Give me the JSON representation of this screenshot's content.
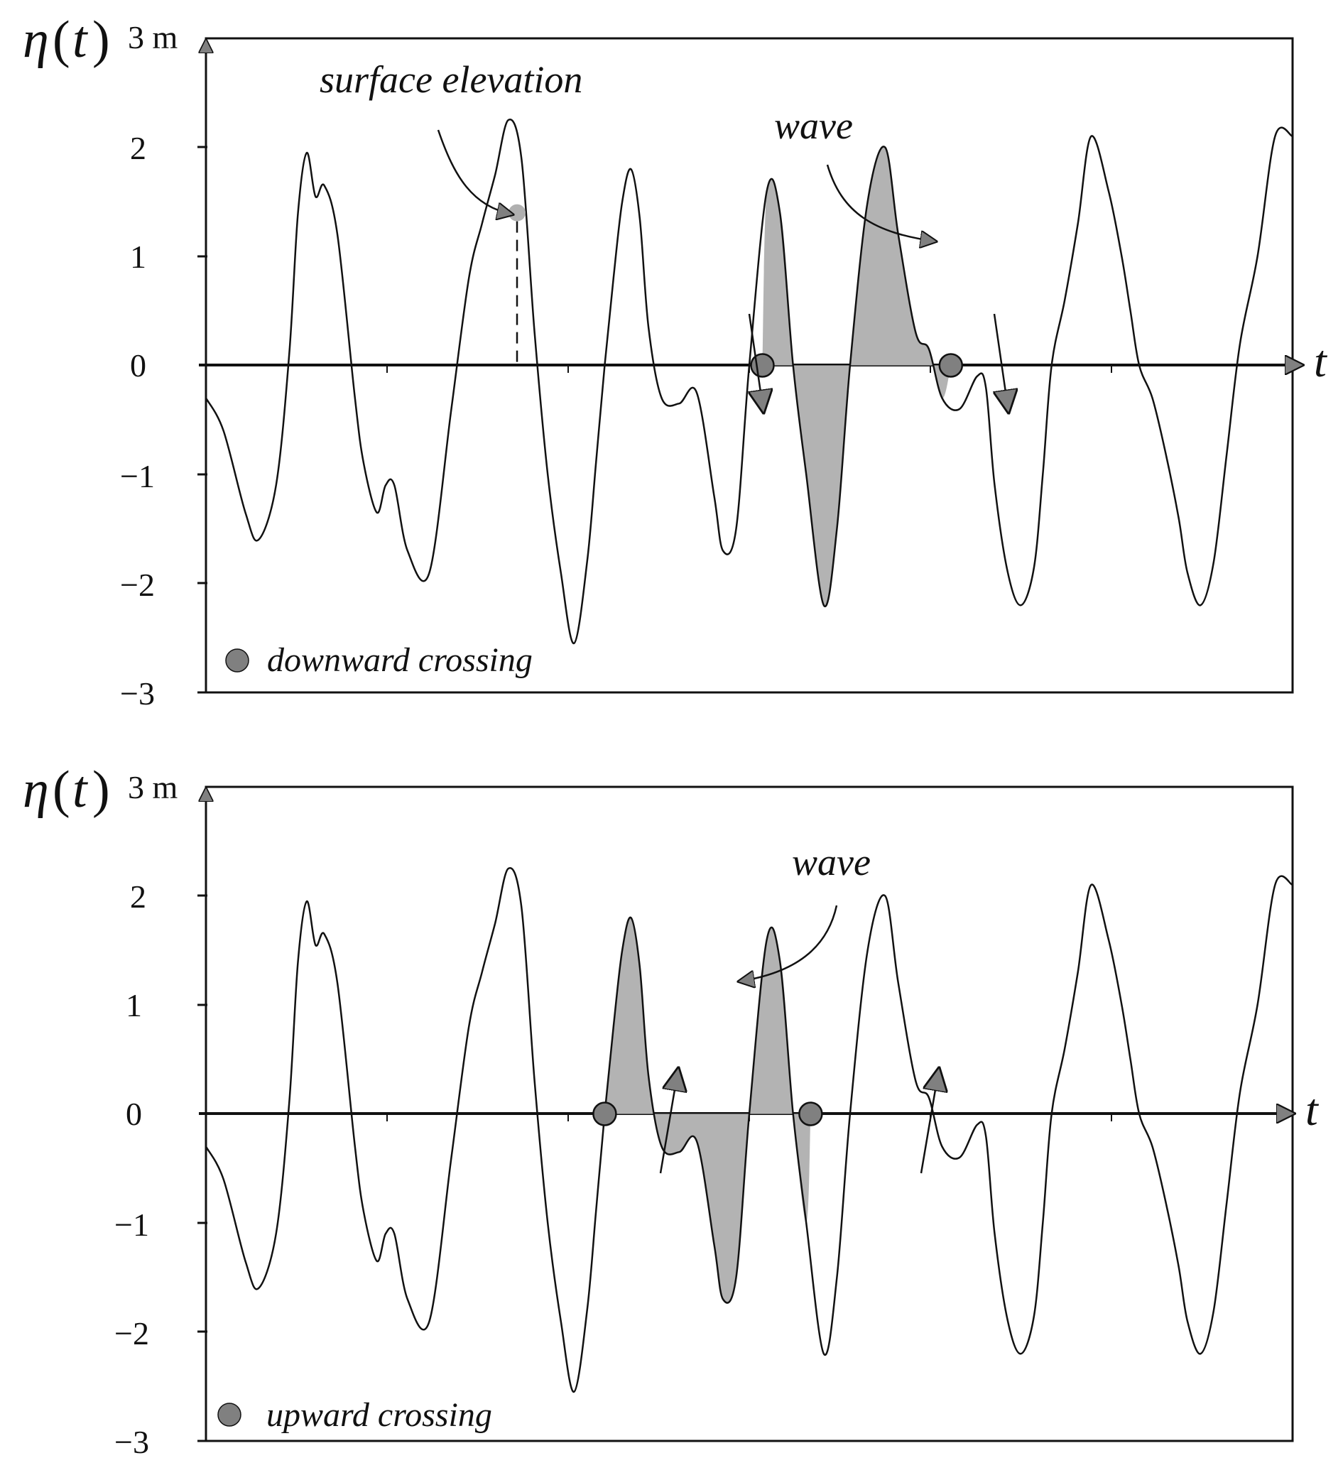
{
  "chart_data": [
    {
      "type": "line",
      "ylabel_symbol": "η",
      "ylabel_arg": "t",
      "yunit": "3 m",
      "xlabel": "t",
      "ylim": [
        -3,
        3
      ],
      "yticks": [
        "−3",
        "−2",
        "−1",
        "0",
        "1",
        "2"
      ],
      "grid": false,
      "series": [
        {
          "x": [
            0,
            0.2,
            0.45,
            0.6,
            0.8,
            0.95,
            1.05,
            1.15,
            1.25,
            1.35,
            1.5,
            1.7,
            1.8,
            1.95,
            2.05,
            2.15,
            2.3,
            2.55,
            2.8,
            3.0,
            3.15,
            3.3,
            3.45,
            3.6,
            3.75,
            3.9,
            4.05,
            4.2,
            4.35,
            4.45,
            4.55,
            4.65,
            4.75,
            4.85,
            4.95,
            5.05,
            5.2,
            5.4,
            5.6,
            5.8,
            5.9,
            6.05,
            6.2,
            6.4,
            6.55,
            6.7,
            6.85,
            7.05,
            7.2,
            7.35,
            7.55,
            7.75,
            7.9,
            8.1,
            8.25,
            8.4,
            8.6,
            8.8,
            8.9,
            9.0,
            9.15,
            9.3,
            9.45,
            9.55,
            9.65,
            9.8,
            9.95,
            10.1,
            10.3,
            10.45,
            10.55,
            10.65,
            10.8,
            10.95,
            11.1,
            11.2,
            11.35,
            11.5,
            11.65,
            11.8,
            12.0,
            12.2,
            12.4
          ],
          "values": [
            -0.3,
            -0.6,
            -1.35,
            -1.6,
            -1.1,
            0.1,
            1.4,
            1.95,
            1.55,
            1.65,
            1.2,
            -0.3,
            -0.9,
            -1.35,
            -1.1,
            -1.1,
            -1.7,
            -1.9,
            -0.4,
            0.8,
            1.3,
            1.75,
            2.25,
            1.9,
            0.3,
            -1.0,
            -1.9,
            -2.55,
            -1.8,
            -0.9,
            0.0,
            0.8,
            1.5,
            1.8,
            1.35,
            0.35,
            -0.3,
            -0.35,
            -0.25,
            -1.2,
            -1.7,
            -1.5,
            0.0,
            1.6,
            1.4,
            0.0,
            -1.0,
            -2.2,
            -1.5,
            0.0,
            1.5,
            2.0,
            1.2,
            0.3,
            0.15,
            -0.3,
            -0.4,
            -0.1,
            -0.2,
            -1.1,
            -1.9,
            -2.2,
            -1.85,
            -1.0,
            0.0,
            0.6,
            1.3,
            2.1,
            1.6,
            1.0,
            0.5,
            0.0,
            -0.3,
            -0.8,
            -1.4,
            -1.9,
            -2.2,
            -1.8,
            -0.8,
            0.2,
            1.0,
            2.1,
            2.1
          ]
        }
      ],
      "crossings_t": [
        6.35,
        8.5
      ],
      "shaded_range_t": [
        6.35,
        8.5
      ],
      "surface_point": {
        "t": 3.55,
        "eta": 1.4
      },
      "annotations": [
        "surface elevation",
        "wave"
      ],
      "legend": {
        "label": "downward crossing",
        "position": "bottom-left"
      },
      "legend_color": "#808080",
      "fill_color": "#b3b3b3"
    },
    {
      "type": "line",
      "ylabel_symbol": "η",
      "ylabel_arg": "t",
      "yunit": "3 m",
      "xlabel": "t",
      "ylim": [
        -3,
        3
      ],
      "yticks": [
        "−3",
        "−2",
        "−1",
        "0",
        "1",
        "2"
      ],
      "grid": false,
      "series": [
        {
          "x": [
            0,
            0.2,
            0.45,
            0.6,
            0.8,
            0.95,
            1.05,
            1.15,
            1.25,
            1.35,
            1.5,
            1.7,
            1.8,
            1.95,
            2.05,
            2.15,
            2.3,
            2.55,
            2.8,
            3.0,
            3.15,
            3.3,
            3.45,
            3.6,
            3.75,
            3.9,
            4.05,
            4.2,
            4.35,
            4.45,
            4.55,
            4.65,
            4.75,
            4.85,
            4.95,
            5.05,
            5.2,
            5.4,
            5.6,
            5.8,
            5.9,
            6.05,
            6.2,
            6.4,
            6.55,
            6.7,
            6.85,
            7.05,
            7.2,
            7.35,
            7.55,
            7.75,
            7.9,
            8.1,
            8.25,
            8.4,
            8.6,
            8.8,
            8.9,
            9.0,
            9.15,
            9.3,
            9.45,
            9.55,
            9.65,
            9.8,
            9.95,
            10.1,
            10.3,
            10.45,
            10.55,
            10.65,
            10.8,
            10.95,
            11.1,
            11.2,
            11.35,
            11.5,
            11.65,
            11.8,
            12.0,
            12.2,
            12.4
          ],
          "values": [
            -0.3,
            -0.6,
            -1.35,
            -1.6,
            -1.1,
            0.1,
            1.4,
            1.95,
            1.55,
            1.65,
            1.2,
            -0.3,
            -0.9,
            -1.35,
            -1.1,
            -1.1,
            -1.7,
            -1.9,
            -0.4,
            0.8,
            1.3,
            1.75,
            2.25,
            1.9,
            0.3,
            -1.0,
            -1.9,
            -2.55,
            -1.8,
            -0.9,
            0.0,
            0.8,
            1.5,
            1.8,
            1.35,
            0.35,
            -0.3,
            -0.35,
            -0.25,
            -1.2,
            -1.7,
            -1.5,
            0.0,
            1.6,
            1.4,
            0.0,
            -1.0,
            -2.2,
            -1.5,
            0.0,
            1.5,
            2.0,
            1.2,
            0.3,
            0.15,
            -0.3,
            -0.4,
            -0.1,
            -0.2,
            -1.1,
            -1.9,
            -2.2,
            -1.85,
            -1.0,
            0.0,
            0.6,
            1.3,
            2.1,
            1.6,
            1.0,
            0.5,
            0.0,
            -0.3,
            -0.8,
            -1.4,
            -1.9,
            -2.2,
            -1.8,
            -0.8,
            0.2,
            1.0,
            2.1,
            2.1
          ]
        }
      ],
      "crossings_t": [
        4.55,
        6.9
      ],
      "shaded_range_t": [
        4.55,
        6.9
      ],
      "annotations": [
        "wave"
      ],
      "legend": {
        "label": "upward crossing",
        "position": "bottom-left"
      },
      "legend_color": "#808080",
      "fill_color": "#b3b3b3"
    }
  ]
}
